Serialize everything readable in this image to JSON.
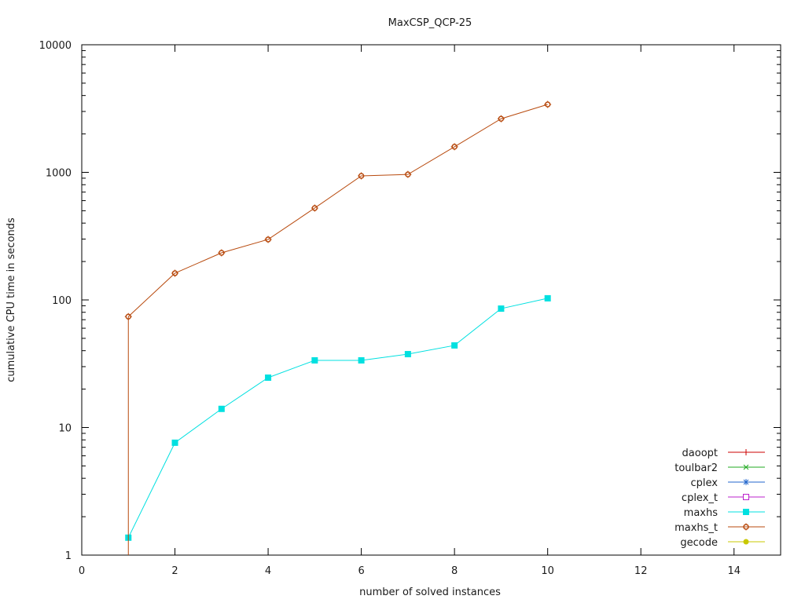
{
  "chart_data": {
    "type": "line",
    "title": "MaxCSP_QCP-25",
    "xlabel": "number of solved instances",
    "ylabel": "cumulative CPU time in seconds",
    "xlim": [
      0,
      15
    ],
    "ylim": [
      1,
      10000
    ],
    "yscale": "log",
    "x_ticks": [
      0,
      2,
      4,
      6,
      8,
      10,
      12,
      14
    ],
    "y_ticks": [
      1,
      10,
      100,
      1000,
      10000
    ],
    "grid": false,
    "legend_position": "lower right",
    "series": [
      {
        "name": "daoopt",
        "color": "#cc0000",
        "marker": "plus",
        "x": [],
        "values": []
      },
      {
        "name": "toulbar2",
        "color": "#22aa22",
        "marker": "cross",
        "x": [],
        "values": []
      },
      {
        "name": "cplex",
        "color": "#2266cc",
        "marker": "star",
        "x": [],
        "values": []
      },
      {
        "name": "cplex_t",
        "color": "#bb22cc",
        "marker": "open-square",
        "x": [],
        "values": []
      },
      {
        "name": "maxhs",
        "color": "#00e0e0",
        "marker": "filled-square",
        "x": [
          1,
          2,
          3,
          4,
          5,
          6,
          7,
          8,
          9,
          10
        ],
        "values": [
          1.37,
          7.6,
          14,
          24.6,
          33.6,
          33.6,
          37.6,
          44,
          85.5,
          103
        ]
      },
      {
        "name": "maxhs_t",
        "color": "#b84a0e",
        "marker": "open-circle",
        "x": [
          1,
          2,
          3,
          4,
          5,
          6,
          7,
          8,
          9,
          10
        ],
        "values": [
          74,
          162,
          234,
          298,
          525,
          938,
          963,
          1587,
          2630,
          3405
        ],
        "drop_to_axis_at_first_point": true
      },
      {
        "name": "gecode",
        "color": "#c8c800",
        "marker": "filled-circle",
        "x": [],
        "values": []
      }
    ]
  }
}
